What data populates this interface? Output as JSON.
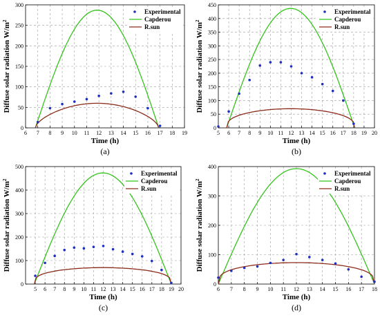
{
  "chart_data": [
    {
      "type": "line",
      "panel_label": "(a)",
      "xlabel": "Time (h)",
      "ylabel": "Diffuse solar radiation W/m",
      "ylabel_sup": "2",
      "xlim": [
        6,
        19
      ],
      "ylim": [
        0,
        300
      ],
      "xticks": [
        6,
        7,
        8,
        9,
        10,
        11,
        12,
        13,
        14,
        15,
        16,
        17,
        18,
        19
      ],
      "yticks": [
        0,
        50,
        100,
        150,
        200,
        250,
        300
      ],
      "legend_position": "top-right",
      "legend": [
        "Experimental",
        "Capderou",
        "R.sun"
      ],
      "colors": {
        "experimental": "#1f2fbf",
        "capderou": "#33c41a",
        "rsun": "#8b2a1a"
      },
      "experimental": {
        "x": [
          7,
          8,
          9,
          10,
          11,
          12,
          13,
          14,
          15,
          16,
          17
        ],
        "y": [
          14,
          48,
          58,
          64,
          70,
          78,
          84,
          88,
          76,
          48,
          5
        ]
      },
      "capderou": {
        "start": 6.8,
        "end": 16.9,
        "peak": 287
      },
      "rsun": {
        "start": 6.8,
        "end": 16.9,
        "peak": 60,
        "exp": 0.6
      }
    },
    {
      "type": "line",
      "panel_label": "(b)",
      "xlabel": "Time (h)",
      "ylabel": "Diffuse solar radiation W/m",
      "ylabel_sup": "2",
      "xlim": [
        5,
        20
      ],
      "ylim": [
        0,
        450
      ],
      "xticks": [
        5,
        6,
        7,
        8,
        9,
        10,
        11,
        12,
        13,
        14,
        15,
        16,
        17,
        18,
        19,
        20
      ],
      "yticks": [
        0,
        50,
        100,
        150,
        200,
        250,
        300,
        350,
        400,
        450
      ],
      "legend_position": "top-right",
      "legend": [
        "Experimental",
        "Capderou",
        "R.sun"
      ],
      "colors": {
        "experimental": "#1f2fbf",
        "capderou": "#33c41a",
        "rsun": "#8b2a1a"
      },
      "experimental": {
        "x": [
          5,
          6,
          7,
          8,
          9,
          10,
          11,
          12,
          13,
          14,
          15,
          16,
          17,
          18
        ],
        "y": [
          5,
          60,
          125,
          175,
          228,
          240,
          240,
          225,
          200,
          185,
          160,
          135,
          100,
          15
        ]
      },
      "capderou": {
        "start": 5.8,
        "end": 18.1,
        "peak": 437
      },
      "rsun": {
        "start": 5.8,
        "end": 18.1,
        "peak": 70,
        "exp": 0.35
      }
    },
    {
      "type": "line",
      "panel_label": "(c)",
      "xlabel": "Time (h)",
      "ylabel": "Diffuse solar radiation W/m",
      "ylabel_sup": "2",
      "xlim": [
        4,
        20
      ],
      "ylim": [
        0,
        500
      ],
      "xticks": [
        5,
        6,
        7,
        8,
        9,
        10,
        11,
        12,
        13,
        14,
        15,
        16,
        17,
        18,
        19,
        20
      ],
      "yticks": [
        0,
        100,
        200,
        300,
        400,
        500
      ],
      "legend_position": "top-right",
      "legend": [
        "Experimental",
        "Capderou",
        "R.sun"
      ],
      "colors": {
        "experimental": "#1f2fbf",
        "capderou": "#33c41a",
        "rsun": "#8b2a1a"
      },
      "experimental": {
        "x": [
          5,
          6,
          7,
          8,
          9,
          10,
          11,
          12,
          13,
          14,
          15,
          16,
          17,
          18,
          19
        ],
        "y": [
          35,
          90,
          120,
          145,
          155,
          152,
          158,
          162,
          148,
          138,
          128,
          118,
          98,
          60,
          5
        ]
      },
      "capderou": {
        "start": 4.9,
        "end": 19.0,
        "peak": 473
      },
      "rsun": {
        "start": 4.9,
        "end": 19.0,
        "peak": 70,
        "exp": 0.3
      }
    },
    {
      "type": "line",
      "panel_label": "(d)",
      "xlabel": "Time (h)",
      "ylabel": "Diffuse solar radiation W/m",
      "ylabel_sup": "2",
      "xlim": [
        6,
        18
      ],
      "ylim": [
        0,
        400
      ],
      "xticks": [
        6,
        7,
        8,
        9,
        10,
        11,
        12,
        13,
        14,
        15,
        16,
        17,
        18
      ],
      "yticks": [
        0,
        100,
        200,
        300,
        400
      ],
      "legend_position": "top-right",
      "legend": [
        "Experimental",
        "Capderou",
        "R.sun"
      ],
      "colors": {
        "experimental": "#1f2fbf",
        "capderou": "#33c41a",
        "rsun": "#8b2a1a"
      },
      "experimental": {
        "x": [
          6,
          7,
          8,
          9,
          10,
          11,
          12,
          13,
          14,
          15,
          16,
          17,
          18
        ],
        "y": [
          22,
          45,
          55,
          60,
          72,
          82,
          102,
          92,
          82,
          70,
          50,
          25,
          8
        ]
      },
      "capderou": {
        "start": 6.0,
        "end": 18.0,
        "peak": 393
      },
      "rsun": {
        "start": 6.0,
        "end": 18.0,
        "peak": 73,
        "exp": 0.3
      }
    }
  ]
}
